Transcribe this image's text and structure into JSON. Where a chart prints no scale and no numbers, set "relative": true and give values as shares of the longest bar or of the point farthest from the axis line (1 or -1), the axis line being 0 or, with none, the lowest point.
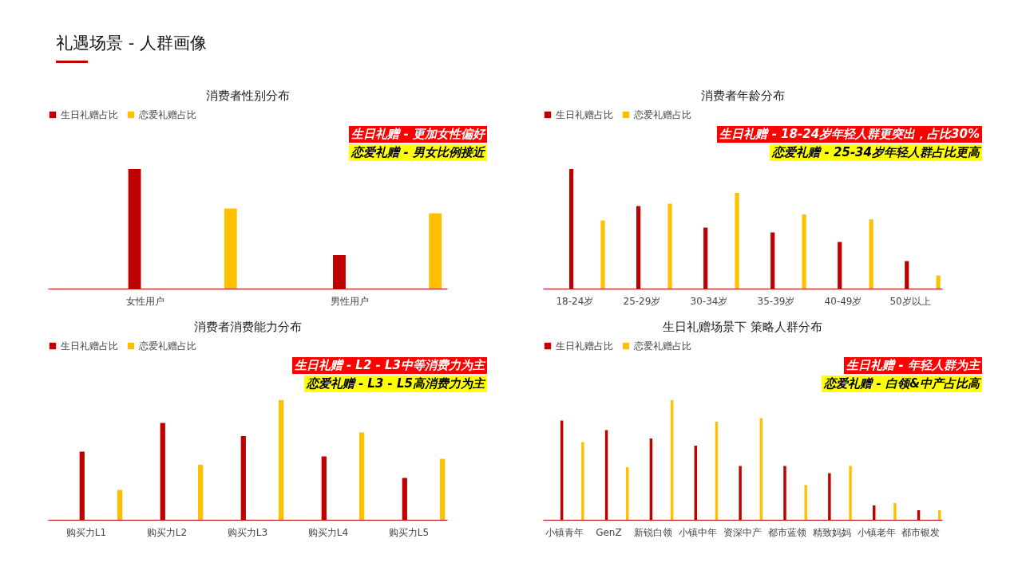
{
  "chart_data": [
    {
      "type": "other",
      "title": "礼遇场景 - 人群画像"
    },
    {
      "type": "bar",
      "title": "消费者性别分布",
      "categories": [
        "女性用户",
        "男性用户"
      ],
      "relative": true,
      "legend": "top",
      "grid": false,
      "series": [
        {
          "name": "生日礼赠占比",
          "color": "#c00000",
          "values": [
            1,
            0.28
          ]
        },
        {
          "name": "恋爱礼赠占比",
          "color": "#ffc000",
          "values": [
            0.67,
            0.63
          ]
        }
      ],
      "annotations": [
        "生日礼赠 - 更加女性偏好",
        "恋爱礼赠 - 男女比例接近"
      ]
    },
    {
      "type": "bar",
      "title": "消费者年龄分布",
      "categories": [
        "18-24岁",
        "25-29岁",
        "30-34岁",
        "35-39岁",
        "40-49岁",
        "50岁以上"
      ],
      "relative": true,
      "legend": "top",
      "grid": false,
      "series": [
        {
          "name": "生日礼赠占比",
          "color": "#c00000",
          "values": [
            1,
            0.69,
            0.51,
            0.47,
            0.39,
            0.23
          ]
        },
        {
          "name": "恋爱礼赠占比",
          "color": "#ffc000",
          "values": [
            0.57,
            0.71,
            0.8,
            0.62,
            0.58,
            0.11
          ]
        }
      ],
      "annotations": [
        "生日礼赠 - 18-24岁年轻人群更突出，占比30%",
        "恋爱礼赠 - 25-34岁年轻人群占比更高"
      ]
    },
    {
      "type": "bar",
      "title": "消费者消费能力分布",
      "categories": [
        "购买力L1",
        "购买力L2",
        "购买力L3",
        "购买力L4",
        "购买力L5"
      ],
      "relative": true,
      "legend": "top",
      "grid": false,
      "series": [
        {
          "name": "生日礼赠占比",
          "color": "#c00000",
          "values": [
            0.57,
            0.81,
            0.7,
            0.53,
            0.35
          ]
        },
        {
          "name": "恋爱礼赠占比",
          "color": "#ffc000",
          "values": [
            0.25,
            0.46,
            1,
            0.73,
            0.51
          ]
        }
      ],
      "annotations": [
        "生日礼赠 - L2 - L3中等消费力为主",
        "恋爱礼赠 - L3 - L5高消费力为主"
      ]
    },
    {
      "type": "bar",
      "title": "生日礼赠场景下 策略人群分布",
      "categories": [
        "小镇青年",
        "GenZ",
        "新锐白领",
        "小镇中年",
        "资深中产",
        "都市蓝领",
        "精致妈妈",
        "小镇老年",
        "都市银发"
      ],
      "relative": true,
      "legend": "top",
      "grid": false,
      "series": [
        {
          "name": "生日礼赠占比",
          "color": "#c00000",
          "values": [
            0.83,
            0.75,
            0.68,
            0.62,
            0.45,
            0.45,
            0.39,
            0.12,
            0.08
          ]
        },
        {
          "name": "恋爱礼赠占比",
          "color": "#ffc000",
          "values": [
            0.65,
            0.44,
            1,
            0.82,
            0.85,
            0.29,
            0.45,
            0.14,
            0.08
          ]
        }
      ],
      "annotations": [
        "生日礼赠 - 年轻人群为主",
        "恋爱礼赠 - 白领&中产占比高"
      ]
    }
  ]
}
